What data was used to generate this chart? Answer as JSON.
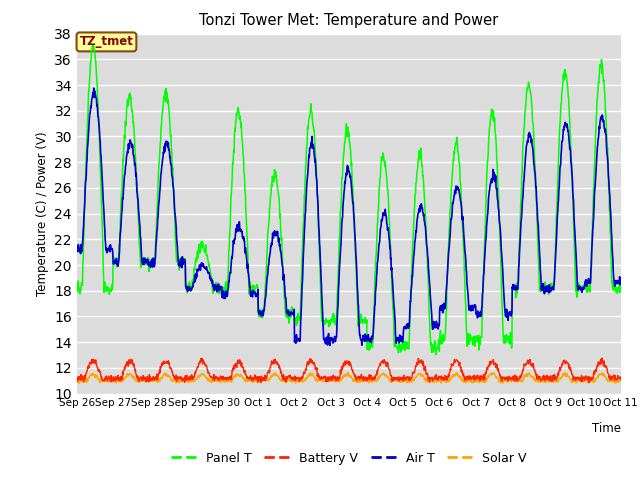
{
  "title": "Tonzi Tower Met: Temperature and Power",
  "xlabel": "Time",
  "ylabel": "Temperature (C) / Power (V)",
  "ylim": [
    10,
    38
  ],
  "yticks": [
    10,
    12,
    14,
    16,
    18,
    20,
    22,
    24,
    26,
    28,
    30,
    32,
    34,
    36,
    38
  ],
  "x_labels": [
    "Sep 26",
    "Sep 27",
    "Sep 28",
    "Sep 29",
    "Sep 30",
    "Oct 1",
    "Oct 2",
    "Oct 3",
    "Oct 4",
    "Oct 5",
    "Oct 6",
    "Oct 7",
    "Oct 8",
    "Oct 9",
    "Oct 10",
    "Oct 11"
  ],
  "annotation_label": "TZ_tmet",
  "colors": {
    "panel_t": "#00FF00",
    "battery_v": "#FF2200",
    "air_t": "#0000CC",
    "solar_v": "#FFA500"
  },
  "legend_labels": [
    "Panel T",
    "Battery V",
    "Air T",
    "Solar V"
  ],
  "bg_color": "#DCDCDC",
  "grid_color": "white",
  "n_days": 15,
  "pts_per_day": 96,
  "panel_peaks": [
    37.0,
    33.0,
    33.5,
    21.5,
    32.0,
    27.0,
    32.0,
    30.5,
    28.5,
    28.5,
    29.5,
    32.0,
    34.0,
    35.0,
    35.5
  ],
  "panel_mins": [
    18.0,
    20.0,
    20.0,
    18.0,
    18.0,
    16.0,
    15.5,
    15.5,
    13.5,
    13.5,
    14.0,
    14.0,
    18.0,
    18.0,
    18.0
  ],
  "air_peaks": [
    33.5,
    29.5,
    29.5,
    20.0,
    23.0,
    22.5,
    29.5,
    27.5,
    24.0,
    24.5,
    26.0,
    27.0,
    30.0,
    31.0,
    31.5
  ],
  "air_mins": [
    21.0,
    20.0,
    20.0,
    18.0,
    17.5,
    16.0,
    14.0,
    14.0,
    14.0,
    15.0,
    16.5,
    16.0,
    18.0,
    18.0,
    18.5
  ]
}
